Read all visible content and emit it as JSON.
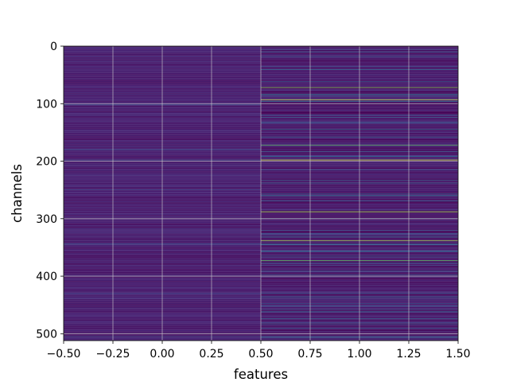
{
  "chart_data": {
    "type": "heatmap",
    "title": "",
    "xlabel": "features",
    "ylabel": "channels",
    "xlim": [
      -0.5,
      1.5
    ],
    "ylim": [
      512,
      0
    ],
    "y_inverted": true,
    "colormap": "viridis",
    "grid": true,
    "xticks": [
      -0.5,
      -0.25,
      0.0,
      0.25,
      0.5,
      0.75,
      1.0,
      1.25,
      1.5
    ],
    "xtick_labels": [
      "−0.50",
      "−0.25",
      "0.00",
      "0.25",
      "0.50",
      "0.75",
      "1.00",
      "1.25",
      "1.50"
    ],
    "yticks": [
      0,
      100,
      200,
      300,
      400,
      500
    ],
    "ytick_labels": [
      "0",
      "100",
      "200",
      "300",
      "400",
      "500"
    ],
    "rows": 512,
    "columns": [
      0,
      1
    ],
    "column_0_baseline": 0.1,
    "column_1_baseline": 0.08,
    "highlighted_rows_column_1": [
      {
        "row": 10,
        "value": 0.4
      },
      {
        "row": 18,
        "value": 0.35
      },
      {
        "row": 62,
        "value": 0.4
      },
      {
        "row": 72,
        "value": 0.85
      },
      {
        "row": 84,
        "value": 0.5
      },
      {
        "row": 93,
        "value": 0.95
      },
      {
        "row": 96,
        "value": 0.45
      },
      {
        "row": 120,
        "value": 0.35
      },
      {
        "row": 145,
        "value": 0.45
      },
      {
        "row": 158,
        "value": 0.4
      },
      {
        "row": 172,
        "value": 0.8
      },
      {
        "row": 183,
        "value": 0.4
      },
      {
        "row": 192,
        "value": 0.45
      },
      {
        "row": 198,
        "value": 0.95
      },
      {
        "row": 215,
        "value": 0.35
      },
      {
        "row": 238,
        "value": 0.4
      },
      {
        "row": 260,
        "value": 0.5
      },
      {
        "row": 288,
        "value": 0.9
      },
      {
        "row": 300,
        "value": 0.4
      },
      {
        "row": 320,
        "value": 0.35
      },
      {
        "row": 332,
        "value": 0.45
      },
      {
        "row": 338,
        "value": 0.9
      },
      {
        "row": 344,
        "value": 0.45
      },
      {
        "row": 356,
        "value": 0.4
      },
      {
        "row": 373,
        "value": 0.8
      },
      {
        "row": 398,
        "value": 0.35
      },
      {
        "row": 436,
        "value": 0.4
      },
      {
        "row": 448,
        "value": 0.35
      },
      {
        "row": 462,
        "value": 0.45
      },
      {
        "row": 474,
        "value": 0.4
      },
      {
        "row": 483,
        "value": 0.35
      },
      {
        "row": 505,
        "value": 0.4
      }
    ],
    "highlighted_rows_column_0": [
      {
        "row": 102,
        "value": 0.3
      },
      {
        "row": 180,
        "value": 0.3
      },
      {
        "row": 198,
        "value": 0.3
      },
      {
        "row": 250,
        "value": 0.25
      },
      {
        "row": 344,
        "value": 0.3
      },
      {
        "row": 430,
        "value": 0.25
      },
      {
        "row": 505,
        "value": 0.3
      }
    ]
  }
}
